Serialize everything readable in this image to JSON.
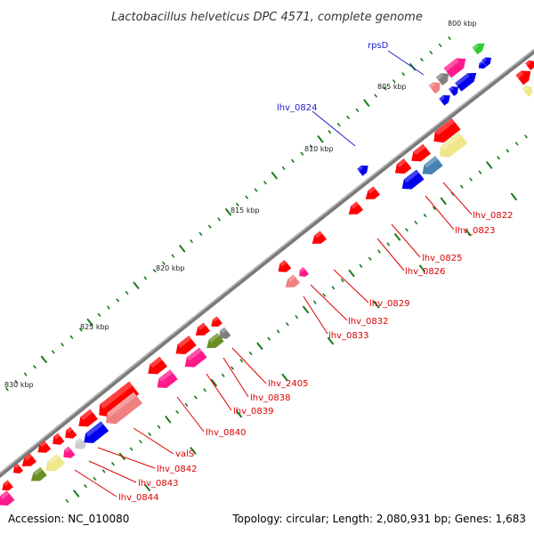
{
  "title": "Lactobacillus helveticus DPC 4571, complete genome",
  "footer": {
    "accession": "Accession: NC_010080",
    "summary": "Topology: circular; Length: 2,080,931 bp; Genes: 1,683"
  },
  "colors": {
    "backbone": "#808080",
    "tick": "#1a7a1a",
    "forward_label": "#2222cc",
    "reverse_label": "#dd0000",
    "red": "#ff0000",
    "pink": "#ff1a8c",
    "salmon": "#f08080",
    "khaki": "#f0e68c",
    "blue": "#0000ee",
    "steelblue": "#4682b4",
    "olive": "#6b8e23",
    "gray": "#808080",
    "silver": "#cccccc",
    "lime": "#32cd32"
  },
  "scale_labels": [
    "800 kbp",
    "805 kbp",
    "810 kbp",
    "815 kbp",
    "820 kbp",
    "825 kbp",
    "830 kbp"
  ],
  "gene_labels": {
    "forward": [
      "rpsD",
      "lhv_0824"
    ],
    "reverse": [
      "lhv_0822",
      "lhv_0823",
      "lhv_0825",
      "lhv_0826",
      "lhv_0829",
      "lhv_0832",
      "lhv_0833",
      "lhv_2405",
      "lhv_0838",
      "lhv_0839",
      "lhv_0840",
      "valS",
      "lhv_0842",
      "lhv_0843",
      "lhv_0844"
    ]
  }
}
